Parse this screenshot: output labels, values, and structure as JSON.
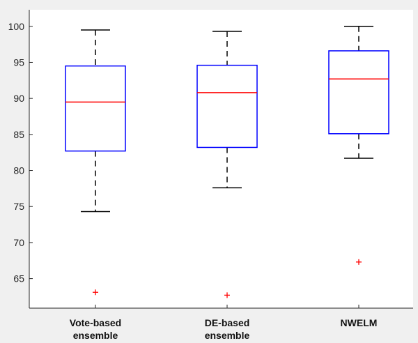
{
  "chart_data": {
    "type": "boxplot",
    "title": "",
    "xlabel": "",
    "ylabel": "",
    "ylim": [
      60.9,
      102.3
    ],
    "yticks": [
      65,
      70,
      75,
      80,
      85,
      90,
      95,
      100
    ],
    "grid": false,
    "categories": [
      {
        "label_lines": [
          "Vote-based",
          "ensemble"
        ]
      },
      {
        "label_lines": [
          "DE-based",
          "ensemble"
        ]
      },
      {
        "label_lines": [
          "NWELM"
        ]
      }
    ],
    "boxes": [
      {
        "whisker_low": 74.3,
        "q1": 82.7,
        "median": 89.5,
        "q3": 94.5,
        "whisker_high": 99.5,
        "outliers": [
          63.1
        ]
      },
      {
        "whisker_low": 77.6,
        "q1": 83.2,
        "median": 90.8,
        "q3": 94.6,
        "whisker_high": 99.3,
        "outliers": [
          62.7
        ]
      },
      {
        "whisker_low": 81.7,
        "q1": 85.1,
        "median": 92.7,
        "q3": 96.6,
        "whisker_high": 100.0,
        "outliers": [
          67.3
        ]
      }
    ],
    "colors": {
      "box": "#0000ff",
      "median": "#ff0000",
      "whisker": "#000000",
      "outlier": "#ff0000",
      "plot_background": "#ffffff",
      "figure_background": "#f0f0f0",
      "axis": "#262626"
    }
  }
}
